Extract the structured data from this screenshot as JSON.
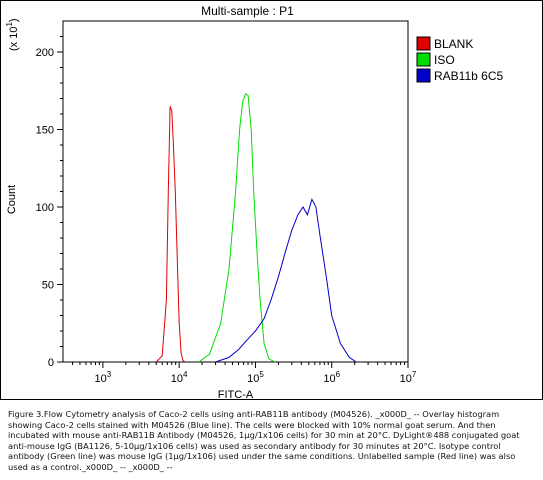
{
  "chart_data": {
    "type": "line",
    "title": "Multi-sample : P1",
    "xlabel": "FITC-A",
    "ylabel": "Count",
    "yscale_label": "(x 10",
    "yscale_exp": "1",
    "yscale_close": ")",
    "xscale": "log",
    "xlim": [
      300,
      10000000
    ],
    "ylim": [
      0,
      220
    ],
    "xticks": [
      {
        "value": 1000,
        "base": "10",
        "exp": "3"
      },
      {
        "value": 10000,
        "base": "10",
        "exp": "4"
      },
      {
        "value": 100000,
        "base": "10",
        "exp": "5"
      },
      {
        "value": 1000000,
        "base": "10",
        "exp": "6"
      },
      {
        "value": 10000000,
        "base": "10",
        "exp": "7"
      }
    ],
    "yticks": [
      {
        "value": 0,
        "label": "0"
      },
      {
        "value": 50,
        "label": "50"
      },
      {
        "value": 100,
        "label": "100"
      },
      {
        "value": 150,
        "label": "150"
      },
      {
        "value": 200,
        "label": "200"
      }
    ],
    "legend_position": "top-right",
    "series": [
      {
        "name": "BLANK",
        "color": "#e00000",
        "x": [
          5000,
          6000,
          6800,
          7200,
          7600,
          8000,
          8400,
          8900,
          9400,
          10000,
          10600,
          11200,
          12000
        ],
        "y": [
          0,
          4,
          40,
          110,
          165,
          162,
          140,
          110,
          70,
          25,
          6,
          1,
          0
        ]
      },
      {
        "name": "ISO",
        "color": "#00dd00",
        "x": [
          18000,
          25000,
          35000,
          45000,
          55000,
          62000,
          68000,
          74000,
          80000,
          88000,
          95000,
          105000,
          115000,
          130000,
          150000,
          180000
        ],
        "y": [
          0,
          5,
          25,
          60,
          110,
          150,
          168,
          173,
          172,
          150,
          110,
          70,
          40,
          12,
          2,
          0
        ]
      },
      {
        "name": "RAB11b 6C5",
        "color": "#0000cc",
        "x": [
          30000,
          45000,
          60000,
          80000,
          100000,
          130000,
          160000,
          200000,
          250000,
          300000,
          360000,
          420000,
          480000,
          550000,
          620000,
          700000,
          850000,
          1000000,
          1300000,
          1700000,
          2100000
        ],
        "y": [
          0,
          3,
          8,
          15,
          20,
          28,
          40,
          55,
          72,
          85,
          95,
          100,
          95,
          105,
          100,
          82,
          55,
          30,
          12,
          3,
          0
        ]
      }
    ]
  },
  "caption": "Figure 3.Flow Cytometry analysis of Caco-2 cells using anti-RAB11B antibody (M04526). _x000D_ -- Overlay histogram showing Caco-2 cells stained with M04526 (Blue line). The cells were blocked with 10% normal goat serum. And then incubated with mouse anti-RAB11B Antibody (M04526, 1µg/1x106 cells) for 30 min at 20°C. DyLight®488 conjugated goat anti-mouse IgG (BA1126, 5-10µg/1x106 cells) was used as secondary antibody for 30 minutes at 20°C. Isotype control antibody (Green line) was mouse IgG (1µg/1x106) used under the same conditions. Unlabelled sample (Red line) was also used as a control._x000D_ -- _x000D_ --"
}
